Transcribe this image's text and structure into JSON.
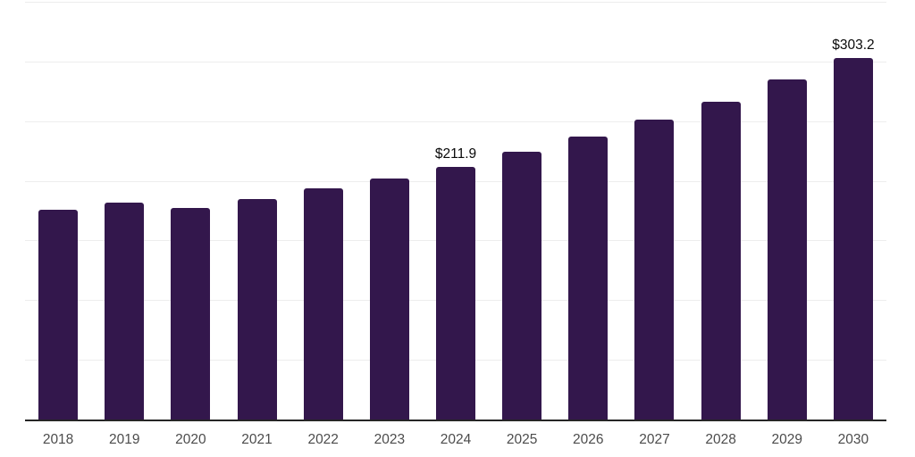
{
  "chart": {
    "bar_color": "#33174C",
    "gridline_color": "#ededed",
    "axis_line_color": "#262626",
    "tick_label_color": "#4c4c4c",
    "value_label_color": "#0a0a0a",
    "background_color": "#ffffff"
  },
  "chart_data": {
    "type": "bar",
    "title": "",
    "xlabel": "",
    "ylabel": "",
    "categories": [
      "2018",
      "2019",
      "2020",
      "2021",
      "2022",
      "2023",
      "2024",
      "2025",
      "2026",
      "2027",
      "2028",
      "2029",
      "2030"
    ],
    "values": [
      175.8,
      181.7,
      177.3,
      185.0,
      193.4,
      201.9,
      211.9,
      224.3,
      237.3,
      251.2,
      266.5,
      285.0,
      303.2
    ],
    "value_labels": [
      "",
      "",
      "",
      "",
      "",
      "",
      "$211.9",
      "",
      "",
      "",
      "",
      "",
      "$303.2"
    ],
    "ylim": [
      0,
      350
    ],
    "gridline_step": 50,
    "grid": true,
    "legend": false,
    "legend_position": "none",
    "x_axis_visible": true,
    "y_axis_tick_labels_visible": false
  }
}
